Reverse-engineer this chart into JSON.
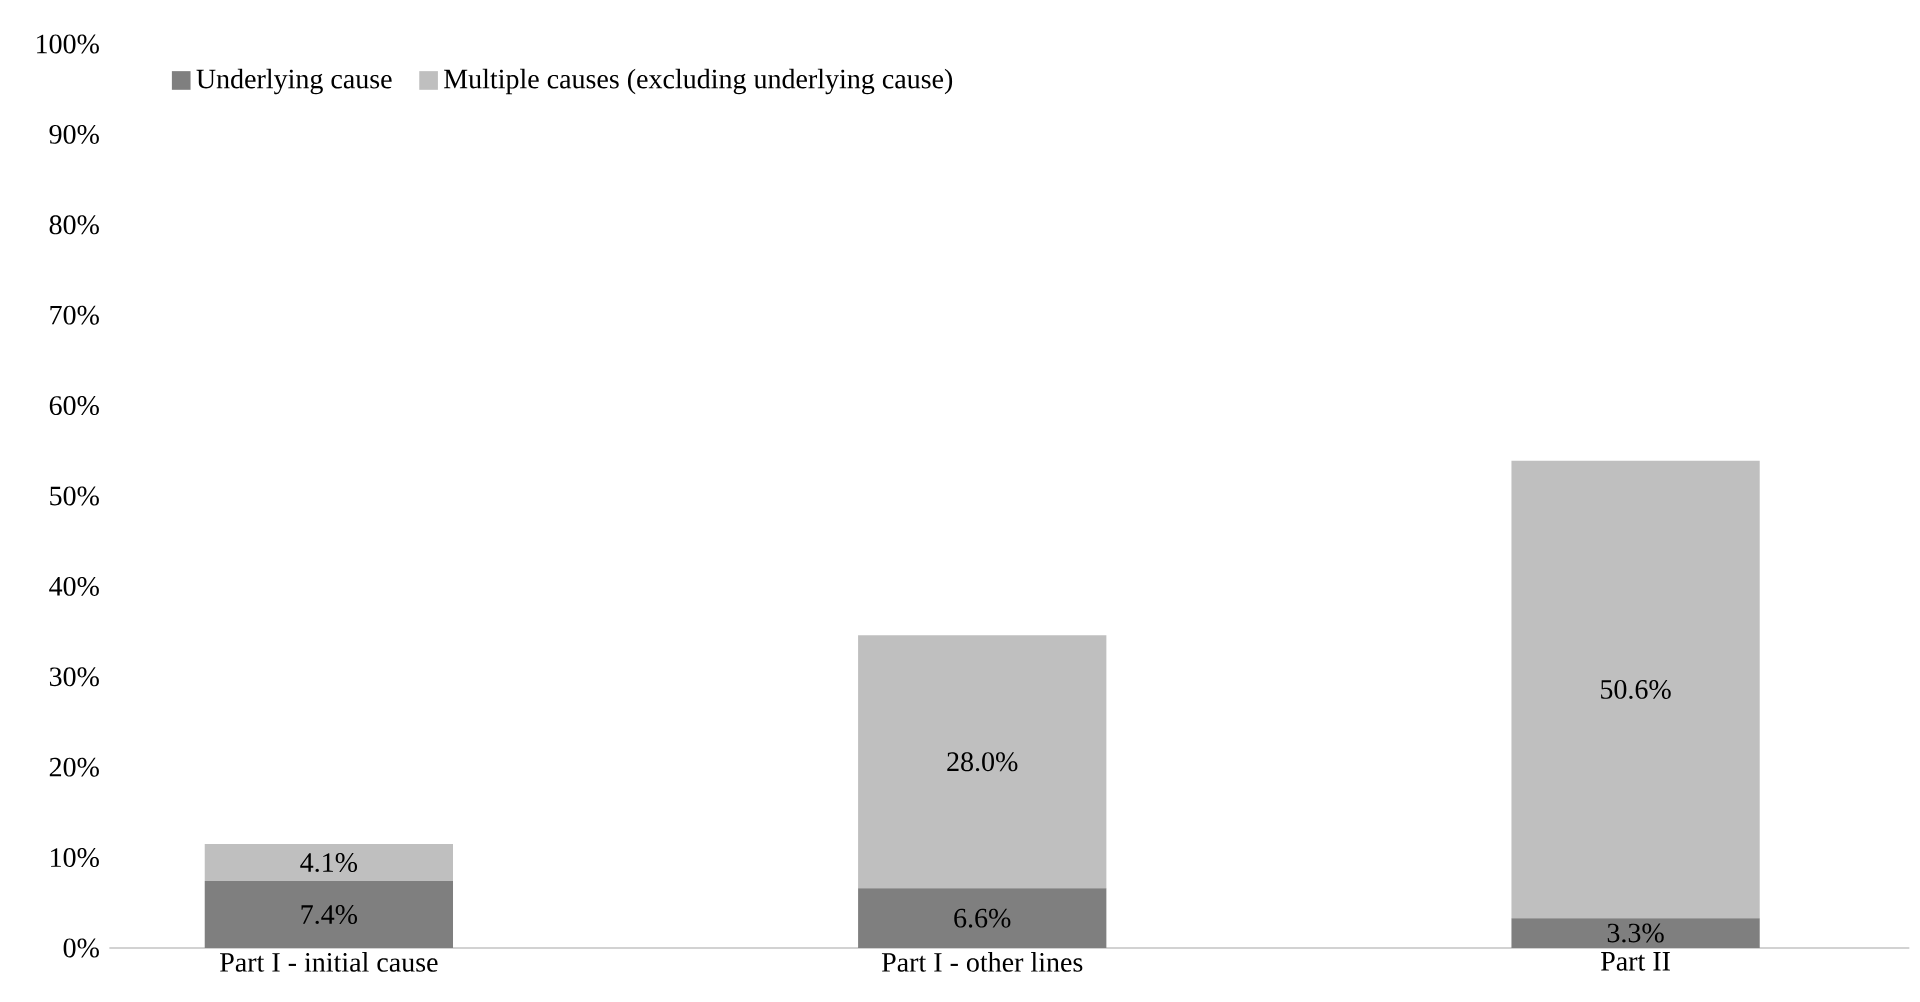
{
  "chart_data": {
    "type": "bar",
    "stacked": true,
    "categories": [
      "Part I - initial cause",
      "Part I - other lines",
      "Part II"
    ],
    "series": [
      {
        "name": "Underlying cause",
        "color": "#7f7f7f",
        "values": [
          7.4,
          6.6,
          3.3
        ],
        "value_labels": [
          "7.4%",
          "6.6%",
          "3.3%"
        ]
      },
      {
        "name": "Multiple causes (excluding underlying cause)",
        "color": "#bfbfbf",
        "values": [
          4.1,
          28.0,
          50.6
        ],
        "value_labels": [
          "4.1%",
          "28.0%",
          "50.6%"
        ]
      }
    ],
    "ylim": [
      0,
      100
    ],
    "yticks": [
      {
        "value": 0,
        "label": "0%"
      },
      {
        "value": 10,
        "label": "10%"
      },
      {
        "value": 20,
        "label": "20%"
      },
      {
        "value": 30,
        "label": "30%"
      },
      {
        "value": 40,
        "label": "40%"
      },
      {
        "value": 50,
        "label": "50%"
      },
      {
        "value": 60,
        "label": "60%"
      },
      {
        "value": 70,
        "label": "70%"
      },
      {
        "value": 80,
        "label": "80%"
      },
      {
        "value": 90,
        "label": "90%"
      },
      {
        "value": 100,
        "label": "100%"
      }
    ],
    "legend": "top left"
  }
}
